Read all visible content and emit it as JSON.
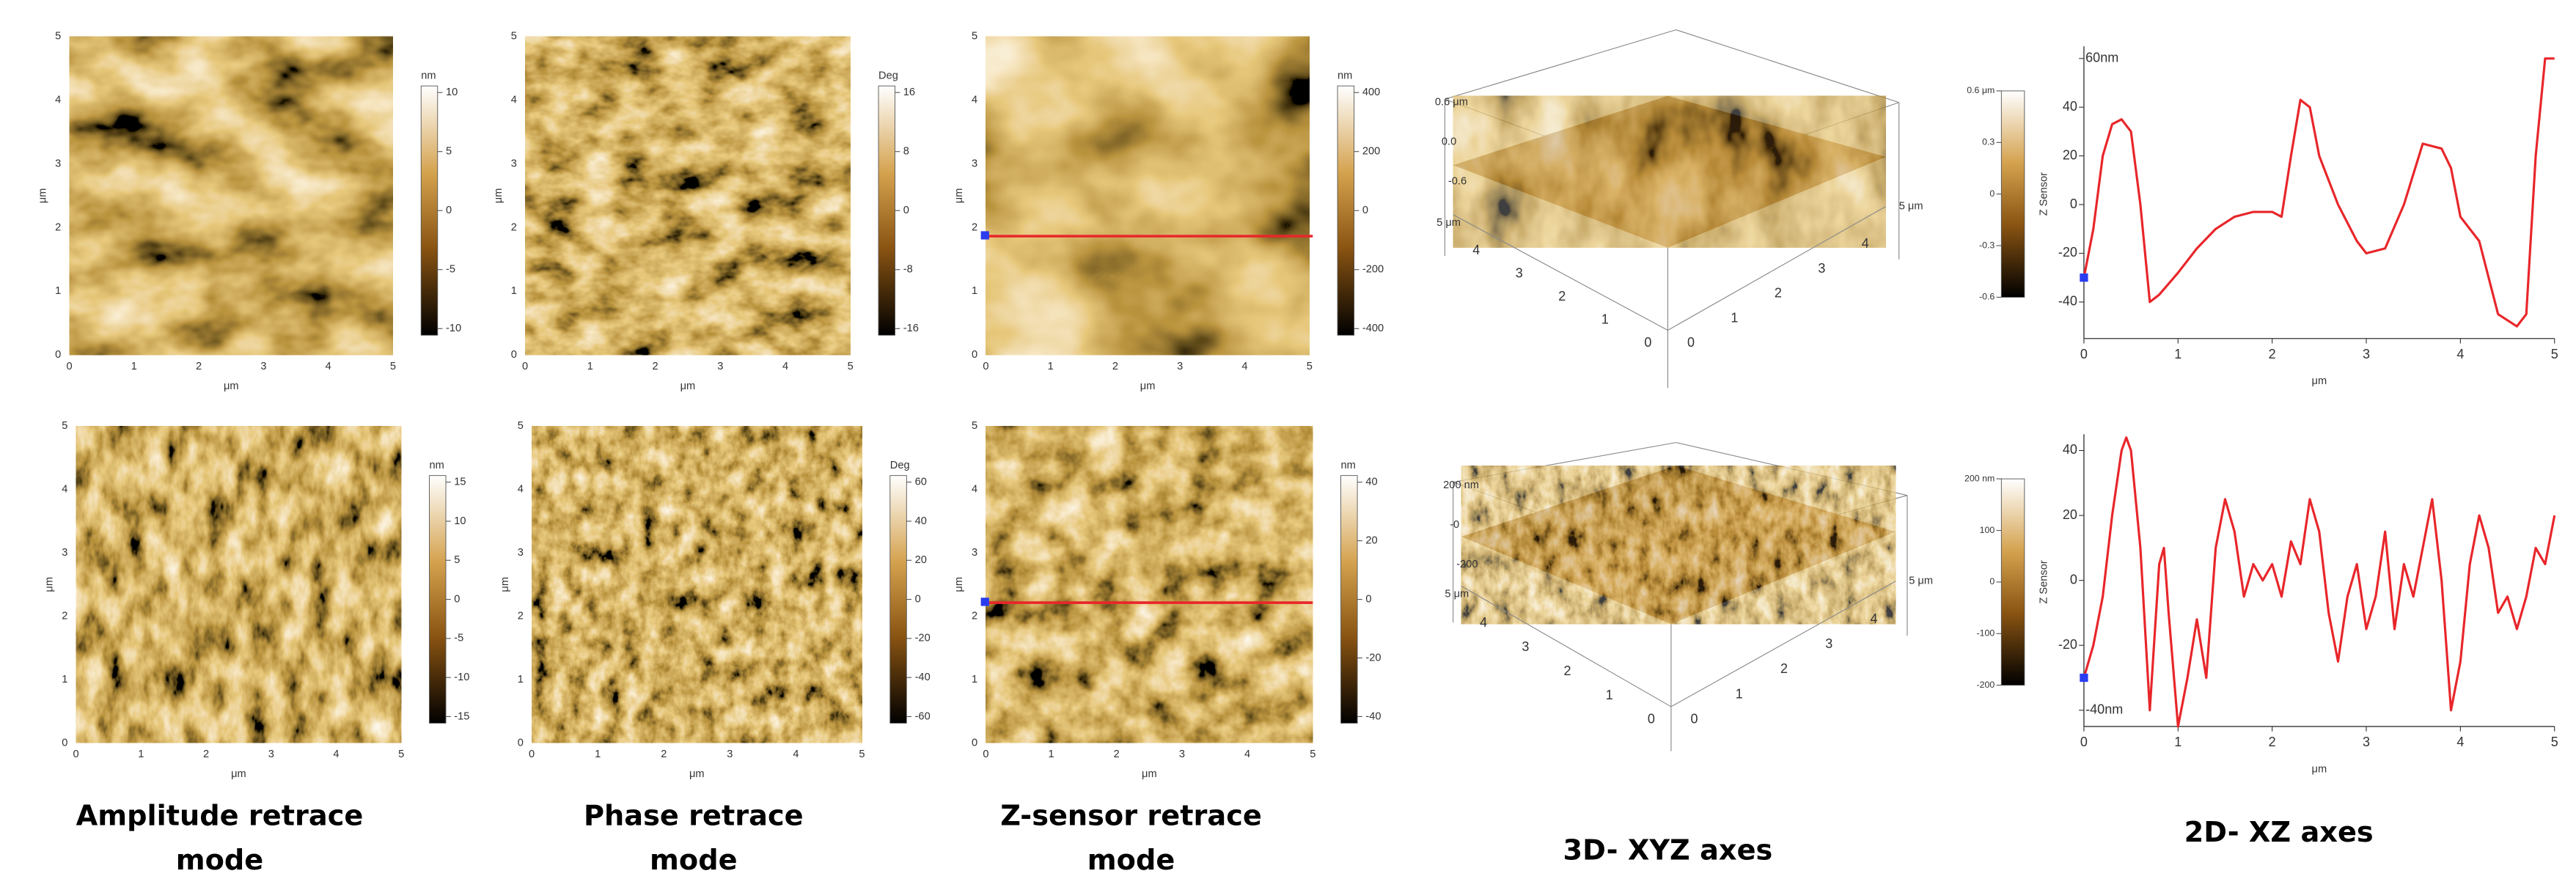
{
  "captions": [
    [
      "Amplitude retrace",
      "mode"
    ],
    [
      "Phase retrace",
      "mode"
    ],
    [
      "Z-sensor retrace",
      "mode"
    ],
    [
      "3D- XYZ axes"
    ],
    [
      "2D- XZ axes"
    ]
  ],
  "axis_unit": "μm",
  "axis_ticks": [
    0,
    1,
    2,
    3,
    4,
    5
  ],
  "maps": [
    {
      "colorbar_unit": "nm",
      "colorbar_ticks": [
        10,
        5,
        0,
        -5,
        -10
      ]
    },
    {
      "colorbar_unit": "Deg",
      "colorbar_ticks": [
        16,
        8,
        0,
        -8,
        -16
      ]
    },
    {
      "colorbar_unit": "nm",
      "colorbar_ticks": [
        400,
        200,
        0,
        -200,
        -400
      ]
    },
    {
      "colorbar_unit": "nm",
      "colorbar_ticks": [
        15,
        10,
        5,
        0,
        -5,
        -10,
        -15
      ]
    },
    {
      "colorbar_unit": "Deg",
      "colorbar_ticks": [
        60,
        40,
        20,
        0,
        -20,
        -40,
        -60
      ]
    },
    {
      "colorbar_unit": "nm",
      "colorbar_ticks": [
        40,
        20,
        0,
        -20,
        -40
      ]
    }
  ],
  "surfaces": [
    {
      "z_ticks": [
        {
          "value": 0.6,
          "label": "0.6 μm"
        },
        {
          "value": 0,
          "label": "0.0"
        },
        {
          "value": -0.6,
          "label": "-0.6"
        }
      ],
      "edge_label": "5 μm",
      "edge_ticks": [
        0,
        1,
        2,
        3,
        4
      ]
    },
    {
      "z_ticks": [
        {
          "value": 200,
          "label": "200 nm"
        },
        {
          "value": 0,
          "label": "-0"
        },
        {
          "value": -200,
          "label": "-200"
        }
      ],
      "edge_label": "5 μm",
      "edge_ticks": [
        0,
        1,
        2,
        3,
        4
      ]
    }
  ],
  "chart_data": [
    {
      "type": "line",
      "x": [
        0,
        0.1,
        0.2,
        0.3,
        0.4,
        0.5,
        0.6,
        0.7,
        0.8,
        1.0,
        1.2,
        1.4,
        1.6,
        1.8,
        2.0,
        2.1,
        2.2,
        2.3,
        2.4,
        2.5,
        2.7,
        2.9,
        3.0,
        3.2,
        3.4,
        3.6,
        3.8,
        3.9,
        4.0,
        4.2,
        4.4,
        4.6,
        4.7,
        4.8,
        4.9,
        5.0
      ],
      "series": [
        {
          "color": "#e8262a",
          "values": [
            -30,
            -10,
            20,
            33,
            35,
            30,
            0,
            -40,
            -37,
            -28,
            -18,
            -10,
            -5,
            -3,
            -3,
            -5,
            20,
            43,
            40,
            20,
            0,
            -15,
            -20,
            -18,
            0,
            25,
            23,
            15,
            -5,
            -15,
            -45,
            -50,
            -45,
            20,
            60,
            60
          ]
        }
      ],
      "xlim": [
        0,
        5
      ],
      "xticks": [
        0,
        1,
        2,
        3,
        4,
        5
      ],
      "xlabel": "μm",
      "ylim": [
        -55,
        65
      ],
      "yticks": [
        {
          "value": 60,
          "label": "60nm"
        },
        40,
        20,
        0,
        -20,
        -40
      ],
      "colorbar": {
        "label": "Z Sensor",
        "ticks": [
          {
            "value": 0.6,
            "label": "0.6 μm"
          },
          0.3,
          0,
          -0.3,
          -0.6
        ]
      }
    },
    {
      "type": "line",
      "x": [
        0,
        0.1,
        0.2,
        0.3,
        0.4,
        0.45,
        0.5,
        0.6,
        0.7,
        0.8,
        0.85,
        0.9,
        1.0,
        1.1,
        1.2,
        1.3,
        1.4,
        1.5,
        1.6,
        1.7,
        1.8,
        1.9,
        2.0,
        2.1,
        2.2,
        2.3,
        2.4,
        2.5,
        2.6,
        2.7,
        2.8,
        2.9,
        3.0,
        3.1,
        3.2,
        3.3,
        3.4,
        3.5,
        3.6,
        3.7,
        3.8,
        3.9,
        4.0,
        4.1,
        4.2,
        4.3,
        4.4,
        4.5,
        4.6,
        4.7,
        4.8,
        4.9,
        5.0
      ],
      "series": [
        {
          "color": "#e8262a",
          "values": [
            -30,
            -20,
            -5,
            20,
            40,
            44,
            40,
            10,
            -40,
            5,
            10,
            -10,
            -45,
            -30,
            -12,
            -30,
            10,
            25,
            15,
            -5,
            5,
            0,
            5,
            -5,
            12,
            5,
            25,
            15,
            -10,
            -25,
            -5,
            5,
            -15,
            -5,
            15,
            -15,
            5,
            -5,
            10,
            25,
            0,
            -40,
            -25,
            5,
            20,
            10,
            -10,
            -5,
            -15,
            -5,
            10,
            5,
            20
          ]
        }
      ],
      "xlim": [
        0,
        5
      ],
      "xticks": [
        0,
        1,
        2,
        3,
        4,
        5
      ],
      "xlabel": "μm",
      "ylim": [
        -45,
        45
      ],
      "yticks": [
        40,
        20,
        0,
        -20,
        {
          "value": -40,
          "label": "-40nm"
        }
      ],
      "colorbar": {
        "label": "Z Sensor",
        "ticks": [
          {
            "value": 200,
            "label": "200 nm"
          },
          100,
          0,
          -100,
          -200
        ]
      }
    }
  ]
}
